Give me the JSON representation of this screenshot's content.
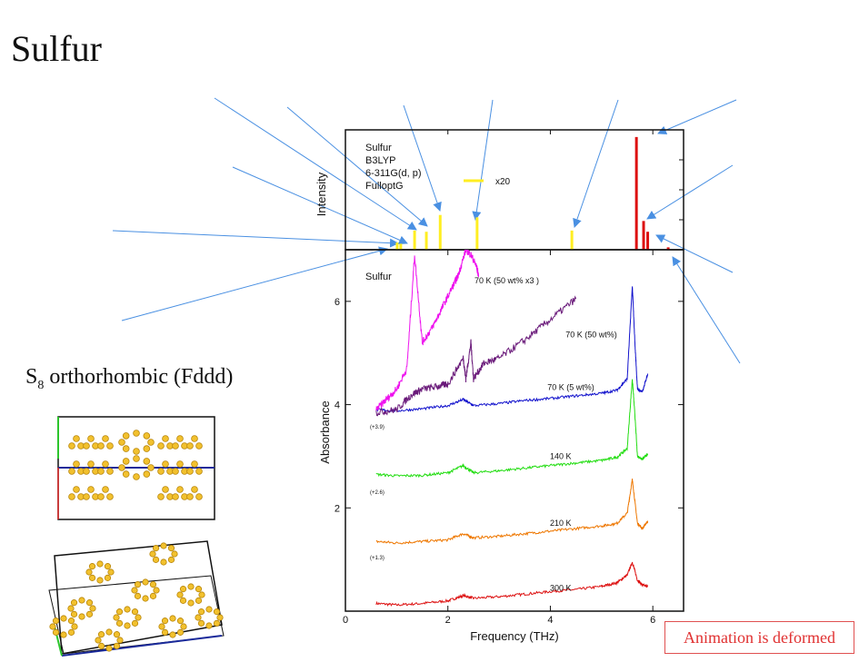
{
  "page": {
    "title": "Sulfur",
    "subtitle_main": "S",
    "subtitle_sub": "8",
    "subtitle_rest": " orthorhombic (Fddd)",
    "badge": "Animation is deformed"
  },
  "chart_data": [
    {
      "type": "bar",
      "panel": "calculated",
      "ylabel": "Intensity",
      "annotation_lines": [
        "Sulfur",
        "B3LYP",
        "6-311G(d, p)",
        "FulloptG"
      ],
      "legend": "x20",
      "colors": {
        "scaled": "#ffee22",
        "unscaled": "#dd1111"
      },
      "peaks": [
        {
          "x": 1.01,
          "h": 0.06,
          "color": "#ffee22"
        },
        {
          "x": 1.08,
          "h": 0.05,
          "color": "#ffee22"
        },
        {
          "x": 1.35,
          "h": 0.16,
          "color": "#ffee22"
        },
        {
          "x": 1.58,
          "h": 0.15,
          "color": "#ffee22"
        },
        {
          "x": 1.85,
          "h": 0.29,
          "color": "#ffee22"
        },
        {
          "x": 2.57,
          "h": 0.27,
          "color": "#ffee22"
        },
        {
          "x": 4.42,
          "h": 0.16,
          "color": "#ffee22"
        },
        {
          "x": 5.68,
          "h": 0.94,
          "color": "#dd1111"
        },
        {
          "x": 5.82,
          "h": 0.24,
          "color": "#dd1111"
        },
        {
          "x": 5.9,
          "h": 0.15,
          "color": "#dd1111"
        },
        {
          "x": 6.3,
          "h": 0.02,
          "color": "#dd1111"
        }
      ]
    },
    {
      "type": "line",
      "panel": "measured",
      "xlabel": "Frequency (THz)",
      "ylabel": "Absorbance",
      "xlim": [
        0,
        6.6
      ],
      "ylim": [
        0,
        7
      ],
      "xticks": [
        "0",
        "2",
        "4",
        "6"
      ],
      "yticks": [
        "2",
        "4",
        "6"
      ],
      "panel_label": "Sulfur",
      "offset_labels": [
        "(+3.9)",
        "(+2.6)",
        "(+1.3)"
      ],
      "series": [
        {
          "name": "300 K",
          "color": "#dd1111",
          "x": [
            0.6,
            1.0,
            1.5,
            2.0,
            2.3,
            2.5,
            3.0,
            3.5,
            4.0,
            4.5,
            5.0,
            5.3,
            5.5,
            5.6,
            5.7,
            5.8,
            5.9
          ],
          "y": [
            0.15,
            0.12,
            0.15,
            0.2,
            0.3,
            0.25,
            0.28,
            0.33,
            0.38,
            0.42,
            0.48,
            0.55,
            0.7,
            0.95,
            0.6,
            0.5,
            0.48
          ]
        },
        {
          "name": "210 K",
          "color": "#ee7700",
          "x": [
            0.6,
            1.0,
            1.5,
            2.0,
            2.3,
            2.5,
            3.0,
            3.5,
            4.0,
            4.5,
            5.0,
            5.3,
            5.5,
            5.6,
            5.7,
            5.8,
            5.9
          ],
          "y": [
            1.35,
            1.32,
            1.35,
            1.38,
            1.5,
            1.42,
            1.45,
            1.5,
            1.55,
            1.6,
            1.65,
            1.7,
            1.9,
            2.55,
            1.7,
            1.6,
            1.75
          ]
        },
        {
          "name": "140 K",
          "color": "#22dd11",
          "x": [
            0.6,
            1.0,
            1.5,
            2.0,
            2.3,
            2.5,
            3.0,
            3.5,
            4.0,
            4.5,
            5.0,
            5.3,
            5.5,
            5.6,
            5.65,
            5.7,
            5.8,
            5.9
          ],
          "y": [
            2.65,
            2.62,
            2.63,
            2.68,
            2.82,
            2.68,
            2.72,
            2.77,
            2.82,
            2.87,
            2.92,
            2.98,
            3.15,
            4.5,
            3.8,
            3.0,
            2.95,
            3.05
          ]
        },
        {
          "name": "70 K (5 wt%)",
          "color": "#1111cc",
          "x": [
            0.6,
            1.0,
            1.5,
            2.0,
            2.3,
            2.5,
            3.0,
            3.5,
            4.0,
            4.5,
            5.0,
            5.3,
            5.5,
            5.6,
            5.65,
            5.7,
            5.8,
            5.9
          ],
          "y": [
            3.9,
            3.88,
            3.92,
            3.98,
            4.1,
            3.98,
            4.02,
            4.08,
            4.12,
            4.17,
            4.22,
            4.28,
            4.5,
            6.3,
            5.2,
            4.3,
            4.25,
            4.6
          ]
        },
        {
          "name": "70 K (50 wt%)",
          "color": "#6a1a7a",
          "x": [
            0.6,
            1.0,
            1.3,
            1.5,
            1.8,
            2.0,
            2.3,
            2.35,
            2.45,
            2.5,
            2.7,
            3.0,
            3.5,
            4.0,
            4.5
          ],
          "y": [
            3.85,
            3.9,
            4.2,
            4.3,
            4.35,
            4.4,
            4.9,
            4.5,
            5.2,
            4.5,
            4.8,
            4.9,
            5.25,
            5.65,
            6.05
          ]
        },
        {
          "name": "70 K (50 wt% x3 )",
          "color": "#ee11ee",
          "x": [
            0.6,
            0.8,
            1.0,
            1.2,
            1.35,
            1.5,
            1.7,
            1.9,
            2.1,
            2.2,
            2.35,
            2.45,
            2.55,
            2.6
          ],
          "y": [
            3.9,
            4.1,
            4.3,
            4.7,
            6.9,
            5.2,
            5.5,
            5.9,
            6.3,
            6.5,
            7,
            6.9,
            6.7,
            6.5
          ]
        }
      ]
    }
  ]
}
